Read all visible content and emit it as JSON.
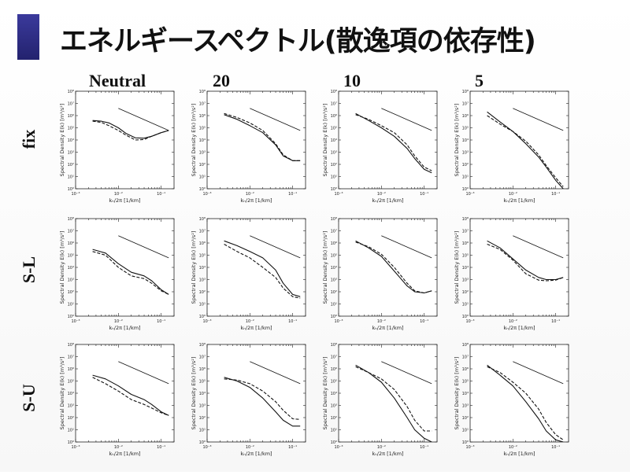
{
  "title": "エネルギースペクトル(散逸項の依存性)",
  "columns": [
    "Neutral",
    "20",
    "10",
    "5"
  ],
  "rows": [
    "fix",
    "S-L",
    "S-U"
  ],
  "panel_axes": {
    "ylabel": "Spectral Density E(k) [m³/s²]",
    "xlabel": "kₕ/2π [1/km]",
    "xlog": true,
    "ylog": true,
    "x_ticks": [
      "10⁻³",
      "10⁻²",
      "10⁻¹"
    ],
    "y_ticks": [
      "10⁰",
      "10¹",
      "10²",
      "10³",
      "10⁴",
      "10⁵",
      "10⁶",
      "10⁷",
      "10⁸"
    ]
  },
  "chart_data": [
    {
      "row": "fix",
      "column": "Neutral",
      "type": "line",
      "xlim": [
        0.001,
        0.2
      ],
      "ylim": [
        1,
        100000000
      ],
      "series": [
        {
          "style": "solid",
          "x": [
            0.0025,
            0.004,
            0.006,
            0.01,
            0.015,
            0.025,
            0.04,
            0.06,
            0.1,
            0.15
          ],
          "y": [
            400000,
            350000,
            250000,
            100000,
            35000,
            15000,
            14000,
            20000,
            40000,
            60000
          ]
        },
        {
          "style": "dashed",
          "x": [
            0.0025,
            0.004,
            0.006,
            0.01,
            0.015,
            0.025,
            0.04,
            0.06,
            0.1,
            0.15
          ],
          "y": [
            350000,
            280000,
            150000,
            60000,
            25000,
            10000,
            11000,
            20000,
            40000,
            60000
          ]
        },
        {
          "style": "reference",
          "x": [
            0.01,
            0.15
          ],
          "y": [
            4000000,
            60000
          ]
        }
      ]
    },
    {
      "row": "fix",
      "column": "20",
      "type": "line",
      "xlim": [
        0.001,
        0.2
      ],
      "ylim": [
        1,
        100000000
      ],
      "series": [
        {
          "style": "solid",
          "x": [
            0.0025,
            0.005,
            0.01,
            0.02,
            0.04,
            0.06,
            0.1,
            0.15
          ],
          "y": [
            1200000,
            500000,
            150000,
            40000,
            4000,
            500,
            200,
            200
          ]
        },
        {
          "style": "dashed",
          "x": [
            0.0025,
            0.005,
            0.01,
            0.02,
            0.04,
            0.06,
            0.1,
            0.15
          ],
          "y": [
            1500000,
            700000,
            250000,
            60000,
            5000,
            600,
            200,
            200
          ]
        },
        {
          "style": "reference",
          "x": [
            0.01,
            0.15
          ],
          "y": [
            4000000,
            60000
          ]
        }
      ]
    },
    {
      "row": "fix",
      "column": "10",
      "type": "line",
      "xlim": [
        0.001,
        0.2
      ],
      "ylim": [
        1,
        100000000
      ],
      "series": [
        {
          "style": "solid",
          "x": [
            0.0025,
            0.005,
            0.01,
            0.02,
            0.04,
            0.06,
            0.1,
            0.15
          ],
          "y": [
            1500000,
            400000,
            100000,
            20000,
            2000,
            300,
            40,
            20
          ]
        },
        {
          "style": "dashed",
          "x": [
            0.0025,
            0.005,
            0.01,
            0.02,
            0.04,
            0.06,
            0.1,
            0.15
          ],
          "y": [
            1200000,
            500000,
            150000,
            40000,
            4000,
            500,
            60,
            30
          ]
        },
        {
          "style": "reference",
          "x": [
            0.01,
            0.15
          ],
          "y": [
            4000000,
            60000
          ]
        }
      ]
    },
    {
      "row": "fix",
      "column": "5",
      "type": "line",
      "xlim": [
        0.001,
        0.2
      ],
      "ylim": [
        1,
        100000000
      ],
      "series": [
        {
          "style": "solid",
          "x": [
            0.0025,
            0.005,
            0.01,
            0.02,
            0.04,
            0.06,
            0.1,
            0.15
          ],
          "y": [
            2000000,
            300000,
            50000,
            5000,
            400,
            60,
            5,
            1
          ]
        },
        {
          "style": "dashed",
          "x": [
            0.0025,
            0.005,
            0.01,
            0.02,
            0.04,
            0.06,
            0.1,
            0.15
          ],
          "y": [
            1000000,
            200000,
            50000,
            8000,
            600,
            80,
            8,
            1.5
          ]
        },
        {
          "style": "reference",
          "x": [
            0.01,
            0.15
          ],
          "y": [
            4000000,
            60000
          ]
        }
      ]
    },
    {
      "row": "S-L",
      "column": "Neutral",
      "type": "line",
      "xlim": [
        0.001,
        0.2
      ],
      "ylim": [
        1,
        100000000
      ],
      "series": [
        {
          "style": "solid",
          "x": [
            0.0025,
            0.005,
            0.01,
            0.02,
            0.04,
            0.06,
            0.1,
            0.15
          ],
          "y": [
            300000,
            150000,
            20000,
            4000,
            2000,
            800,
            150,
            60
          ]
        },
        {
          "style": "dashed",
          "x": [
            0.0025,
            0.005,
            0.01,
            0.02,
            0.04,
            0.06,
            0.1,
            0.15
          ],
          "y": [
            200000,
            100000,
            10000,
            2000,
            1200,
            500,
            120,
            60
          ]
        },
        {
          "style": "reference",
          "x": [
            0.01,
            0.15
          ],
          "y": [
            4000000,
            60000
          ]
        }
      ]
    },
    {
      "row": "S-L",
      "column": "20",
      "type": "line",
      "xlim": [
        0.001,
        0.2
      ],
      "ylim": [
        1,
        100000000
      ],
      "series": [
        {
          "style": "solid",
          "x": [
            0.0025,
            0.005,
            0.01,
            0.02,
            0.04,
            0.06,
            0.1,
            0.15
          ],
          "y": [
            1500000,
            600000,
            200000,
            60000,
            6000,
            500,
            60,
            40
          ]
        },
        {
          "style": "dashed",
          "x": [
            0.0025,
            0.005,
            0.01,
            0.02,
            0.04,
            0.06,
            0.1,
            0.15
          ],
          "y": [
            800000,
            200000,
            60000,
            10000,
            1500,
            200,
            40,
            30
          ]
        },
        {
          "style": "reference",
          "x": [
            0.01,
            0.15
          ],
          "y": [
            4000000,
            60000
          ]
        }
      ]
    },
    {
      "row": "S-L",
      "column": "10",
      "type": "line",
      "xlim": [
        0.001,
        0.2
      ],
      "ylim": [
        1,
        100000000
      ],
      "series": [
        {
          "style": "solid",
          "x": [
            0.0025,
            0.005,
            0.01,
            0.02,
            0.04,
            0.06,
            0.1,
            0.15
          ],
          "y": [
            1500000,
            400000,
            80000,
            5000,
            300,
            100,
            80,
            120
          ]
        },
        {
          "style": "dashed",
          "x": [
            0.0025,
            0.005,
            0.01,
            0.02,
            0.04,
            0.06,
            0.1,
            0.15
          ],
          "y": [
            1200000,
            500000,
            120000,
            10000,
            500,
            120,
            80,
            120
          ]
        },
        {
          "style": "reference",
          "x": [
            0.01,
            0.15
          ],
          "y": [
            4000000,
            60000
          ]
        }
      ]
    },
    {
      "row": "S-L",
      "column": "5",
      "type": "line",
      "xlim": [
        0.001,
        0.2
      ],
      "ylim": [
        1,
        100000000
      ],
      "series": [
        {
          "style": "solid",
          "x": [
            0.0025,
            0.005,
            0.01,
            0.02,
            0.04,
            0.06,
            0.1,
            0.15
          ],
          "y": [
            1500000,
            400000,
            50000,
            6000,
            1500,
            1000,
            1000,
            1500
          ]
        },
        {
          "style": "dashed",
          "x": [
            0.0025,
            0.005,
            0.01,
            0.02,
            0.04,
            0.06,
            0.1,
            0.15
          ],
          "y": [
            800000,
            300000,
            40000,
            3000,
            900,
            800,
            900,
            1500
          ]
        },
        {
          "style": "reference",
          "x": [
            0.01,
            0.15
          ],
          "y": [
            4000000,
            60000
          ]
        }
      ]
    },
    {
      "row": "S-U",
      "column": "Neutral",
      "type": "line",
      "xlim": [
        0.001,
        0.2
      ],
      "ylim": [
        1,
        100000000
      ],
      "series": [
        {
          "style": "solid",
          "x": [
            0.0025,
            0.005,
            0.01,
            0.02,
            0.04,
            0.06,
            0.1,
            0.15
          ],
          "y": [
            300000,
            150000,
            40000,
            8000,
            3000,
            1200,
            300,
            150
          ]
        },
        {
          "style": "dashed",
          "x": [
            0.0025,
            0.005,
            0.01,
            0.02,
            0.04,
            0.06,
            0.1,
            0.15
          ],
          "y": [
            200000,
            60000,
            15000,
            3000,
            1200,
            600,
            250,
            150
          ]
        },
        {
          "style": "reference",
          "x": [
            0.01,
            0.15
          ],
          "y": [
            4000000,
            60000
          ]
        }
      ]
    },
    {
      "row": "S-U",
      "column": "20",
      "type": "line",
      "xlim": [
        0.001,
        0.2
      ],
      "ylim": [
        1,
        100000000
      ],
      "series": [
        {
          "style": "solid",
          "x": [
            0.0025,
            0.005,
            0.01,
            0.02,
            0.04,
            0.06,
            0.1,
            0.15
          ],
          "y": [
            200000,
            100000,
            30000,
            4000,
            300,
            60,
            20,
            20
          ]
        },
        {
          "style": "dashed",
          "x": [
            0.0025,
            0.005,
            0.01,
            0.02,
            0.04,
            0.06,
            0.1,
            0.15
          ],
          "y": [
            150000,
            120000,
            60000,
            15000,
            2000,
            400,
            80,
            70
          ]
        },
        {
          "style": "reference",
          "x": [
            0.01,
            0.15
          ],
          "y": [
            4000000,
            60000
          ]
        }
      ]
    },
    {
      "row": "S-U",
      "column": "10",
      "type": "line",
      "xlim": [
        0.001,
        0.2
      ],
      "ylim": [
        1,
        100000000
      ],
      "series": [
        {
          "style": "solid",
          "x": [
            0.0025,
            0.005,
            0.01,
            0.02,
            0.04,
            0.06,
            0.1,
            0.15
          ],
          "y": [
            2000000,
            500000,
            80000,
            4000,
            100,
            10,
            2,
            1
          ]
        },
        {
          "style": "dashed",
          "x": [
            0.0025,
            0.005,
            0.01,
            0.02,
            0.04,
            0.06,
            0.1,
            0.15
          ],
          "y": [
            1500000,
            500000,
            150000,
            20000,
            800,
            60,
            8,
            8
          ]
        },
        {
          "style": "reference",
          "x": [
            0.01,
            0.15
          ],
          "y": [
            4000000,
            60000
          ]
        }
      ]
    },
    {
      "row": "S-U",
      "column": "5",
      "type": "line",
      "xlim": [
        0.001,
        0.2
      ],
      "ylim": [
        1,
        100000000
      ],
      "series": [
        {
          "style": "solid",
          "x": [
            0.0025,
            0.005,
            0.01,
            0.02,
            0.04,
            0.06,
            0.1,
            0.15
          ],
          "y": [
            2000000,
            300000,
            40000,
            2000,
            80,
            8,
            1.5,
            1
          ]
        },
        {
          "style": "dashed",
          "x": [
            0.0025,
            0.005,
            0.01,
            0.02,
            0.04,
            0.06,
            0.1,
            0.15
          ],
          "y": [
            1500000,
            500000,
            80000,
            10000,
            500,
            40,
            4,
            1.5
          ]
        },
        {
          "style": "reference",
          "x": [
            0.01,
            0.15
          ],
          "y": [
            4000000,
            60000
          ]
        }
      ]
    }
  ]
}
